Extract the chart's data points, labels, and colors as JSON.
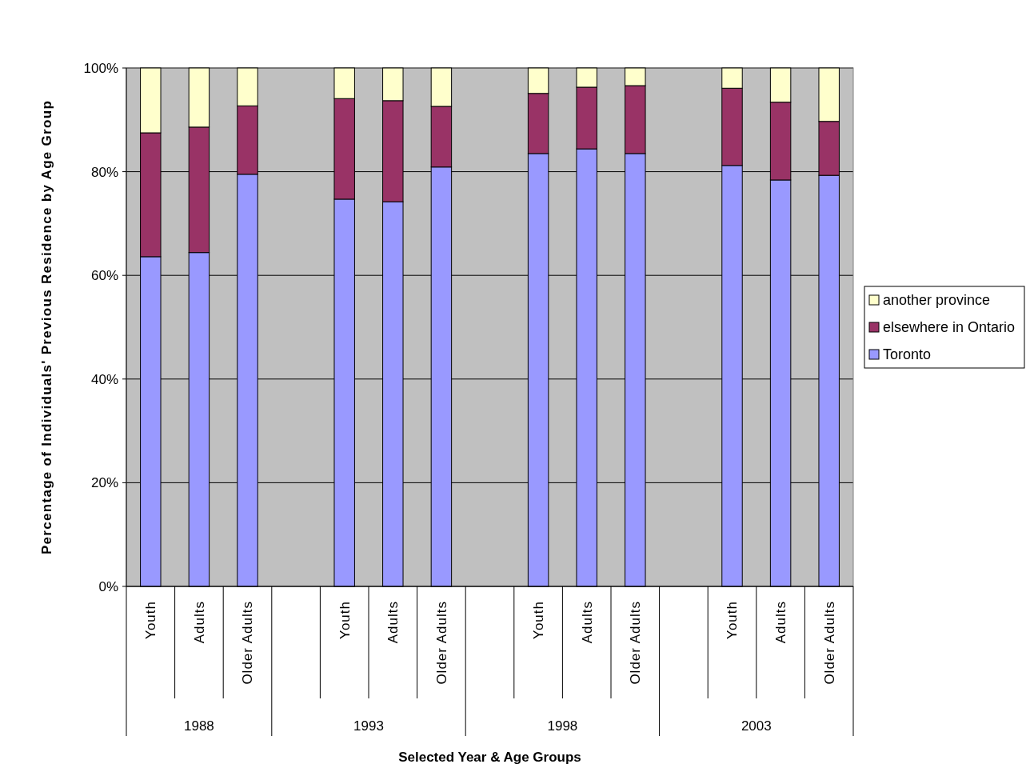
{
  "chart_data": {
    "type": "bar",
    "stacked": true,
    "xlabel": "Selected Year & Age Groups",
    "ylabel": "Percentage of Individuals' Previous Residence by Age Group",
    "categories": [
      "Youth",
      "Adults",
      "Older Adults",
      null,
      "Youth",
      "Adults",
      "Older Adults",
      null,
      "Youth",
      "Adults",
      "Older Adults",
      null,
      "Youth",
      "Adults",
      "Older Adults"
    ],
    "series": [
      {
        "name": "Toronto",
        "color": "#9999ff",
        "values": [
          63.6,
          64.4,
          79.5,
          null,
          74.7,
          74.2,
          80.9,
          null,
          83.5,
          84.4,
          83.5,
          null,
          81.2,
          78.4,
          79.3
        ]
      },
      {
        "name": "elsewhere in Ontario",
        "color": "#993366",
        "values": [
          23.9,
          24.2,
          13.2,
          null,
          19.4,
          19.5,
          11.7,
          null,
          11.6,
          11.9,
          13.1,
          null,
          14.9,
          15.0,
          10.4
        ]
      },
      {
        "name": "another province",
        "color": "#ffffcc",
        "values": [
          12.5,
          11.4,
          7.3,
          null,
          5.9,
          6.3,
          7.4,
          null,
          4.9,
          3.7,
          3.4,
          null,
          3.9,
          6.6,
          10.3
        ]
      }
    ],
    "ylim": [
      0,
      100
    ],
    "yticks": [
      {
        "value": 0,
        "label": "0%"
      },
      {
        "value": 20,
        "label": "20%"
      },
      {
        "value": 40,
        "label": "40%"
      },
      {
        "value": 60,
        "label": "60%"
      },
      {
        "value": 80,
        "label": "80%"
      },
      {
        "value": 100,
        "label": "100%"
      }
    ],
    "grid": "y",
    "legend": "right",
    "annotations": [
      "1988",
      "1993",
      "1998",
      "2003"
    ]
  }
}
